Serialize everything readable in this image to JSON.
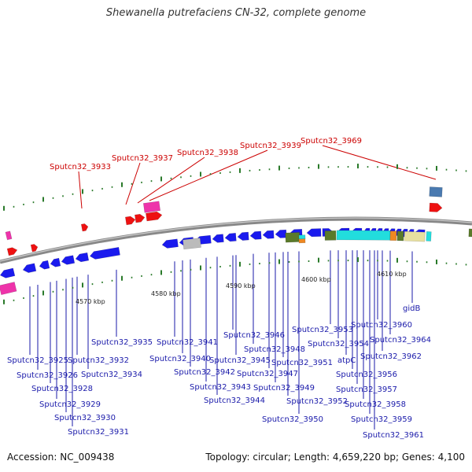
{
  "title": "Shewanella putrefaciens CN-32, complete genome",
  "footer": {
    "accession": "Accession: NC_009438",
    "summary": "Topology: circular; Length: 4,659,220 bp; Genes: 4,100"
  },
  "colors": {
    "cds": "#1a1aee",
    "rna": "#ee1111",
    "top_labels": "#cc0000",
    "bottom_labels": "#1a1aaa",
    "backbone": "#888888",
    "ticks": "#2a7a2a",
    "pink": "#ee33aa",
    "steel": "#4a7ab0",
    "olive": "#5a7a2a",
    "cyan": "#22dddd",
    "orange": "#ee8822",
    "khaki": "#e8e0a0",
    "gray": "#bbbbbb"
  },
  "kbp_labels": [
    "4570 kbp",
    "4580 kbp",
    "4590 kbp",
    "4600 kbp",
    "4610 kbp"
  ],
  "top_genes": [
    "Sputcn32_3933",
    "Sputcn32_3937",
    "Sputcn32_3938",
    "Sputcn32_3939",
    "Sputcn32_3969"
  ],
  "bottom_genes": [
    "Sputcn32_3925",
    "Sputcn32_3926",
    "Sputcn32_3928",
    "Sputcn32_3929",
    "Sputcn32_3930",
    "Sputcn32_3931",
    "Sputcn32_3932",
    "Sputcn32_3934",
    "Sputcn32_3935",
    "Sputcn32_3941",
    "Sputcn32_3940",
    "Sputcn32_3942",
    "Sputcn32_3943",
    "Sputcn32_3944",
    "Sputcn32_3946",
    "Sputcn32_3945",
    "Sputcn32_3948",
    "Sputcn32_3947",
    "Sputcn32_3949",
    "Sputcn32_3951",
    "Sputcn32_3950",
    "Sputcn32_3952",
    "Sputcn32_3953",
    "Sputcn32_3954",
    "atpC",
    "Sputcn32_3956",
    "Sputcn32_3957",
    "Sputcn32_3958",
    "Sputcn32_3959",
    "Sputcn32_3961",
    "Sputcn32_3960",
    "Sputcn32_3962",
    "Sputcn32_3964",
    "gidB"
  ]
}
